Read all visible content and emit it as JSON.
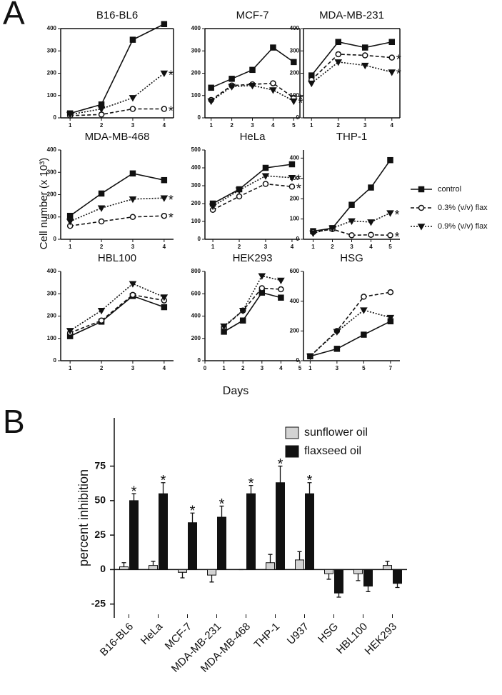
{
  "panel_labels": [
    "A",
    "B"
  ],
  "shared_axes": {
    "y_label": "Cell number (x 10³)",
    "x_label": "Days"
  },
  "chart_data": [
    {
      "type": "line",
      "title": "B16-BL6",
      "x": [
        1,
        2,
        3,
        4
      ],
      "xlim": [
        0.7,
        4.3
      ],
      "xticks": [
        1,
        2,
        3,
        4
      ],
      "ylim": [
        0,
        400
      ],
      "yticks": [
        0,
        100,
        200,
        300,
        400
      ],
      "series": [
        {
          "color": "#111111",
          "dash": "solid",
          "marker": "square",
          "values": [
            20,
            60,
            350,
            420
          ]
        },
        {
          "color": "#111111",
          "dash": "dashed",
          "marker": "circle",
          "values": [
            10,
            15,
            40,
            40
          ]
        },
        {
          "color": "#111111",
          "dash": "dotted",
          "marker": "triangle",
          "values": [
            15,
            40,
            90,
            200
          ]
        }
      ],
      "annotations": [
        {
          "text": "*",
          "series": 2
        },
        {
          "text": "*",
          "series": 1
        }
      ]
    },
    {
      "type": "line",
      "title": "MCF-7",
      "x": [
        1,
        2,
        3,
        4,
        5
      ],
      "xlim": [
        0.7,
        5.3
      ],
      "xticks": [
        1,
        2,
        3,
        4,
        5
      ],
      "ylim": [
        0,
        400
      ],
      "yticks": [
        0,
        100,
        200,
        300,
        400
      ],
      "series": [
        {
          "color": "#111111",
          "dash": "solid",
          "marker": "square",
          "values": [
            135,
            175,
            215,
            315,
            250
          ]
        },
        {
          "color": "#111111",
          "dash": "dashed",
          "marker": "circle",
          "values": [
            80,
            145,
            150,
            155,
            90
          ]
        },
        {
          "color": "#111111",
          "dash": "dotted",
          "marker": "triangle",
          "values": [
            75,
            140,
            145,
            125,
            75
          ]
        }
      ],
      "annotations": [
        {
          "text": "*",
          "series": 1
        },
        {
          "text": "*",
          "series": 2
        }
      ]
    },
    {
      "type": "line",
      "title": "MDA-MB-231",
      "x": [
        1,
        2,
        3,
        4
      ],
      "xlim": [
        0.7,
        4.3
      ],
      "xticks": [
        1,
        2,
        3,
        4
      ],
      "ylim": [
        0,
        400
      ],
      "yticks": [
        0,
        100,
        200,
        300,
        400
      ],
      "series": [
        {
          "color": "#111111",
          "dash": "solid",
          "marker": "square",
          "values": [
            190,
            340,
            315,
            340
          ]
        },
        {
          "color": "#111111",
          "dash": "dashed",
          "marker": "circle",
          "values": [
            170,
            285,
            280,
            270
          ]
        },
        {
          "color": "#111111",
          "dash": "dotted",
          "marker": "triangle",
          "values": [
            155,
            250,
            235,
            205
          ]
        }
      ],
      "annotations": [
        {
          "text": "*",
          "series": 1
        },
        {
          "text": "*",
          "series": 2
        }
      ]
    },
    {
      "type": "line",
      "title": "MDA-MB-468",
      "x": [
        1,
        2,
        3,
        4
      ],
      "xlim": [
        0.7,
        4.3
      ],
      "xticks": [
        1,
        2,
        3,
        4
      ],
      "ylim": [
        0,
        400
      ],
      "yticks": [
        0,
        100,
        200,
        300,
        400
      ],
      "series": [
        {
          "color": "#111111",
          "dash": "solid",
          "marker": "square",
          "values": [
            105,
            205,
            295,
            265
          ]
        },
        {
          "color": "#111111",
          "dash": "dashed",
          "marker": "circle",
          "values": [
            60,
            80,
            100,
            105
          ]
        },
        {
          "color": "#111111",
          "dash": "dotted",
          "marker": "triangle",
          "values": [
            80,
            140,
            180,
            185
          ]
        }
      ],
      "annotations": [
        {
          "text": "*",
          "series": 2
        },
        {
          "text": "*",
          "series": 1
        }
      ]
    },
    {
      "type": "line",
      "title": "HeLa",
      "x": [
        1,
        2,
        3,
        4
      ],
      "xlim": [
        0.7,
        4.3
      ],
      "xticks": [
        1,
        2,
        3,
        4
      ],
      "ylim": [
        0,
        500
      ],
      "yticks": [
        0,
        100,
        200,
        300,
        400,
        500
      ],
      "series": [
        {
          "color": "#111111",
          "dash": "solid",
          "marker": "square",
          "values": [
            200,
            280,
            400,
            420
          ]
        },
        {
          "color": "#111111",
          "dash": "dashed",
          "marker": "circle",
          "values": [
            165,
            240,
            310,
            295
          ]
        },
        {
          "color": "#111111",
          "dash": "dotted",
          "marker": "triangle",
          "values": [
            185,
            275,
            355,
            345
          ]
        }
      ],
      "annotations": [
        {
          "text": "*",
          "series": 2
        },
        {
          "text": "*",
          "series": 1
        }
      ]
    },
    {
      "type": "line",
      "title": "THP-1",
      "x": [
        1,
        2,
        3,
        4,
        5
      ],
      "xlim": [
        0.5,
        5.5
      ],
      "xticks": [
        1,
        2,
        3,
        4,
        5
      ],
      "ylim": [
        0,
        440
      ],
      "yticks": [
        0,
        100,
        200,
        300,
        400
      ],
      "series": [
        {
          "name": "control",
          "color": "#111111",
          "dash": "solid",
          "marker": "square",
          "values": [
            40,
            55,
            170,
            255,
            390
          ]
        },
        {
          "name": "0.3% (v/v) flax",
          "color": "#111111",
          "dash": "dashed",
          "marker": "circle",
          "values": [
            35,
            50,
            20,
            22,
            20
          ]
        },
        {
          "name": "0.9% (v/v) flax",
          "color": "#111111",
          "dash": "dotted",
          "marker": "triangle",
          "values": [
            30,
            55,
            90,
            85,
            130
          ]
        }
      ],
      "annotations": [
        {
          "text": "*",
          "series": 2
        },
        {
          "text": "*",
          "series": 1
        }
      ]
    },
    {
      "type": "line",
      "title": "HBL100",
      "x": [
        1,
        2,
        3,
        4
      ],
      "xlim": [
        0.7,
        4.3
      ],
      "xticks": [
        1,
        2,
        3,
        4
      ],
      "ylim": [
        0,
        400
      ],
      "yticks": [
        0,
        100,
        200,
        300,
        400
      ],
      "series": [
        {
          "color": "#111111",
          "dash": "solid",
          "marker": "square",
          "values": [
            110,
            175,
            290,
            240
          ]
        },
        {
          "color": "#111111",
          "dash": "dashed",
          "marker": "circle",
          "values": [
            125,
            180,
            295,
            270
          ]
        },
        {
          "color": "#111111",
          "dash": "dotted",
          "marker": "triangle",
          "values": [
            135,
            225,
            345,
            285
          ]
        }
      ],
      "annotations": []
    },
    {
      "type": "line",
      "title": "HEK293",
      "x": [
        1,
        2,
        3,
        4
      ],
      "xlim": [
        0,
        5
      ],
      "xticks": [
        0,
        1,
        2,
        3,
        4,
        5
      ],
      "ylim": [
        0,
        800
      ],
      "yticks": [
        0,
        200,
        400,
        600,
        800
      ],
      "series": [
        {
          "color": "#111111",
          "dash": "solid",
          "marker": "square",
          "values": [
            260,
            360,
            610,
            565
          ]
        },
        {
          "color": "#111111",
          "dash": "dashed",
          "marker": "circle",
          "values": [
            300,
            450,
            650,
            640
          ]
        },
        {
          "color": "#111111",
          "dash": "dotted",
          "marker": "triangle",
          "values": [
            310,
            450,
            760,
            720
          ]
        }
      ],
      "annotations": []
    },
    {
      "type": "line",
      "title": "HSG",
      "x": [
        1,
        3,
        5,
        7
      ],
      "xlim": [
        0.5,
        7.7
      ],
      "xticks": [
        1,
        3,
        5,
        7
      ],
      "ylim": [
        0,
        600
      ],
      "yticks": [
        0,
        200,
        400,
        600
      ],
      "series": [
        {
          "color": "#111111",
          "dash": "solid",
          "marker": "square",
          "values": [
            30,
            80,
            175,
            265
          ]
        },
        {
          "color": "#111111",
          "dash": "dashed",
          "marker": "circle",
          "values": [
            30,
            200,
            430,
            460
          ]
        },
        {
          "color": "#111111",
          "dash": "dotted",
          "marker": "triangle",
          "values": [
            30,
            195,
            340,
            290
          ]
        }
      ],
      "annotations": []
    },
    {
      "type": "bar",
      "y_label": "percent inhibition",
      "categories": [
        "B16-BL6",
        "HeLa",
        "MCF-7",
        "MDA-MB-231",
        "MDA-MB-468",
        "THP-1",
        "U937",
        "HSG",
        "HBL100",
        "HEK293"
      ],
      "ylim": [
        -35,
        110
      ],
      "yticks": [
        -25,
        0,
        25,
        50,
        75
      ],
      "series": [
        {
          "name": "sunflower oil",
          "color": "#d3d3d3",
          "values": [
            2,
            3,
            -2,
            -4,
            0,
            5,
            7,
            -3,
            -3,
            3
          ],
          "errors": [
            3,
            3,
            4,
            5,
            0,
            6,
            6,
            4,
            5,
            3
          ]
        },
        {
          "name": "flaxseed oil",
          "color": "#111111",
          "values": [
            50,
            55,
            34,
            38,
            55,
            63,
            55,
            -17,
            -12,
            -10
          ],
          "errors": [
            5,
            8,
            7,
            8,
            6,
            12,
            8,
            3,
            4,
            3
          ]
        }
      ],
      "annotations": [
        {
          "text": "*",
          "series": 1,
          "category": 0
        },
        {
          "text": "*",
          "series": 1,
          "category": 1
        },
        {
          "text": "*",
          "series": 1,
          "category": 2
        },
        {
          "text": "*",
          "series": 1,
          "category": 3
        },
        {
          "text": "*",
          "series": 1,
          "category": 4
        },
        {
          "text": "*",
          "series": 1,
          "category": 5
        },
        {
          "text": "*",
          "series": 1,
          "category": 6
        }
      ]
    }
  ]
}
